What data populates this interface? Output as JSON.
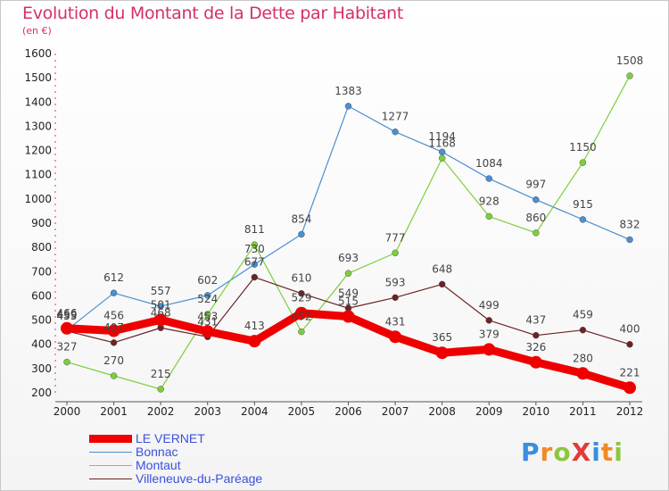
{
  "title": "Evolution du Montant de la Dette par Habitant",
  "subtitle": "(en €)",
  "logo_text": "ProXiti",
  "chart_data": {
    "type": "line",
    "x": [
      "2000",
      "2001",
      "2002",
      "2003",
      "2004",
      "2005",
      "2006",
      "2007",
      "2008",
      "2009",
      "2010",
      "2011",
      "2012"
    ],
    "ylim": [
      200,
      1600
    ],
    "yticks": [
      200,
      300,
      400,
      500,
      600,
      700,
      800,
      900,
      1000,
      1100,
      1200,
      1300,
      1400,
      1500,
      1600
    ],
    "grid": false,
    "legend_position": "bottom-left",
    "series": [
      {
        "name": "LE VERNET",
        "color": "#ee0000",
        "width": "thick",
        "values": [
          466,
          456,
          501,
          453,
          413,
          529,
          515,
          431,
          365,
          379,
          326,
          280,
          221
        ]
      },
      {
        "name": "Bonnac",
        "color": "#4a8fd0",
        "width": "thin",
        "values": [
          459,
          612,
          557,
          602,
          730,
          854,
          1383,
          1277,
          1194,
          1084,
          997,
          915,
          832
        ]
      },
      {
        "name": "Montaut",
        "color": "#7ccf3a",
        "width": "thin",
        "values": [
          327,
          270,
          215,
          524,
          811,
          452,
          693,
          777,
          1168,
          928,
          860,
          1150,
          1508
        ]
      },
      {
        "name": "Villeneuve-du-Paréage",
        "color": "#6b2323",
        "width": "thin",
        "values": [
          455,
          407,
          468,
          431,
          677,
          610,
          549,
          593,
          648,
          499,
          437,
          459,
          400
        ]
      }
    ]
  }
}
